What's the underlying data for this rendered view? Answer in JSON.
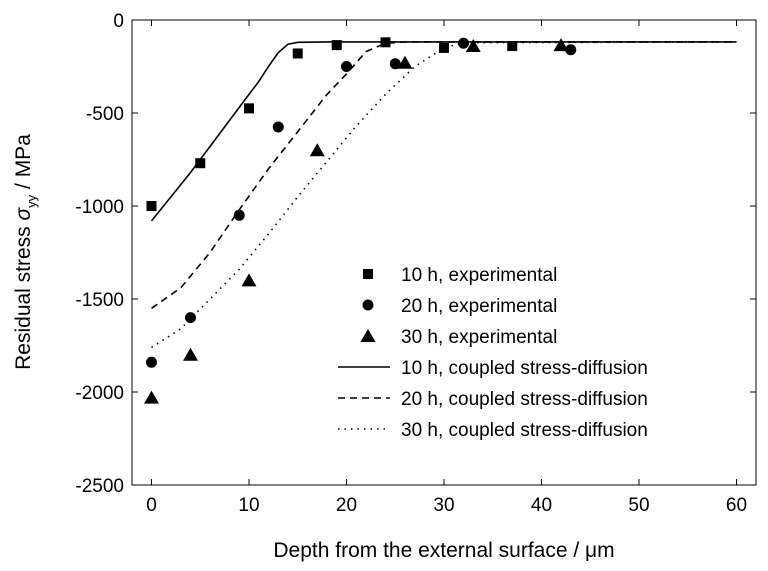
{
  "chart_data": {
    "type": "scatter",
    "xlabel": "Depth from the external surface / ",
    "xlabel_unit": "μm",
    "ylabel_main": "Residual stress ",
    "ylabel_symbol": "σ",
    "ylabel_subscript": "yy",
    "ylabel_unit": " / MPa",
    "xlim": [
      -2,
      62
    ],
    "ylim": [
      -2500,
      0
    ],
    "x_ticks": [
      0,
      10,
      20,
      30,
      40,
      50,
      60
    ],
    "y_ticks": [
      0,
      -500,
      -1000,
      -1500,
      -2000,
      -2500
    ],
    "grid": false,
    "legend_position": "lower-right",
    "series": [
      {
        "name": "10 h, experimental",
        "kind": "markers",
        "marker": "square",
        "points": [
          [
            0,
            -1000
          ],
          [
            5,
            -770
          ],
          [
            10,
            -475
          ],
          [
            15,
            -180
          ],
          [
            19,
            -135
          ],
          [
            24,
            -120
          ],
          [
            30,
            -150
          ],
          [
            37,
            -140
          ]
        ]
      },
      {
        "name": "20 h, experimental",
        "kind": "markers",
        "marker": "circle",
        "points": [
          [
            0,
            -1840
          ],
          [
            4,
            -1600
          ],
          [
            9,
            -1050
          ],
          [
            13,
            -575
          ],
          [
            20,
            -250
          ],
          [
            25,
            -235
          ],
          [
            32,
            -125
          ],
          [
            43,
            -160
          ]
        ]
      },
      {
        "name": "30 h, experimental",
        "kind": "markers",
        "marker": "triangle",
        "points": [
          [
            0,
            -2030
          ],
          [
            4,
            -1800
          ],
          [
            10,
            -1400
          ],
          [
            17,
            -700
          ],
          [
            26,
            -230
          ],
          [
            33,
            -140
          ],
          [
            42,
            -135
          ]
        ]
      },
      {
        "name": "10 h, coupled stress-diffusion",
        "kind": "line",
        "dash": "solid",
        "points": [
          [
            0,
            -1080
          ],
          [
            2,
            -950
          ],
          [
            4,
            -820
          ],
          [
            6,
            -680
          ],
          [
            8,
            -540
          ],
          [
            10,
            -400
          ],
          [
            11,
            -330
          ],
          [
            12,
            -250
          ],
          [
            13,
            -175
          ],
          [
            14,
            -130
          ],
          [
            15,
            -120
          ],
          [
            18,
            -118
          ],
          [
            60,
            -118
          ]
        ]
      },
      {
        "name": "20 h, coupled stress-diffusion",
        "kind": "line",
        "dash": "dashed",
        "points": [
          [
            0,
            -1550
          ],
          [
            3,
            -1440
          ],
          [
            6,
            -1250
          ],
          [
            9,
            -1020
          ],
          [
            12,
            -800
          ],
          [
            15,
            -600
          ],
          [
            18,
            -400
          ],
          [
            20,
            -290
          ],
          [
            22,
            -170
          ],
          [
            24,
            -125
          ],
          [
            26,
            -118
          ],
          [
            60,
            -118
          ]
        ]
      },
      {
        "name": "30 h, coupled stress-diffusion",
        "kind": "line",
        "dash": "dotted",
        "points": [
          [
            0,
            -1760
          ],
          [
            3,
            -1660
          ],
          [
            6,
            -1500
          ],
          [
            9,
            -1340
          ],
          [
            12,
            -1150
          ],
          [
            15,
            -950
          ],
          [
            18,
            -760
          ],
          [
            21,
            -570
          ],
          [
            24,
            -400
          ],
          [
            27,
            -250
          ],
          [
            30,
            -150
          ],
          [
            32,
            -122
          ],
          [
            60,
            -118
          ]
        ]
      }
    ]
  }
}
